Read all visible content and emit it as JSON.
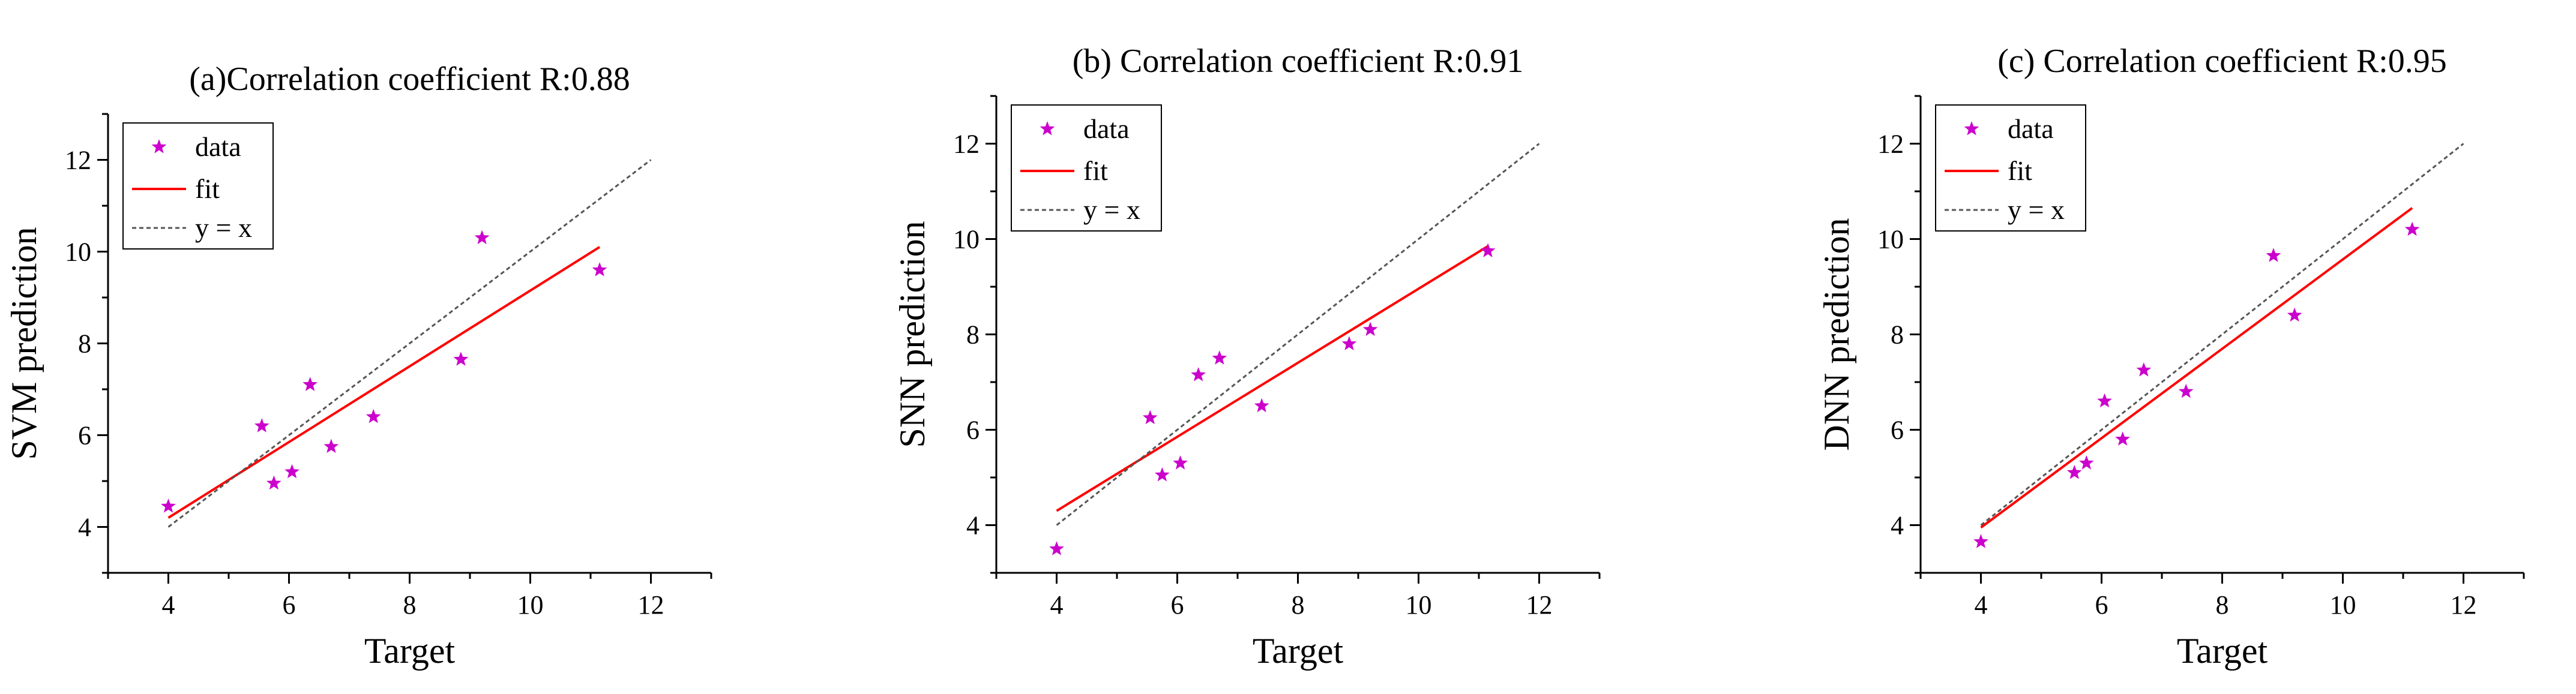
{
  "colors": {
    "data_marker": "#cc00cc",
    "fit_line": "#ff0000",
    "identity_line": "#555555",
    "axis": "#000000"
  },
  "legend_labels": {
    "data": "data",
    "fit": "fit",
    "identity": "y = x"
  },
  "chart_data": [
    {
      "type": "scatter",
      "title": "(a)Correlation coefficient R:0.88",
      "xlabel": "Target",
      "ylabel": "SVM prediction",
      "xlim": [
        3,
        13
      ],
      "ylim": [
        3,
        13
      ],
      "xticks": [
        4,
        6,
        8,
        10,
        12
      ],
      "yticks": [
        4,
        6,
        8,
        10,
        12
      ],
      "legend_position": "top-left",
      "series": [
        {
          "name": "data",
          "kind": "points",
          "x": [
            4.0,
            5.55,
            5.75,
            6.05,
            6.35,
            6.7,
            7.4,
            8.85,
            9.2,
            11.15
          ],
          "y": [
            4.45,
            6.2,
            4.95,
            5.2,
            7.1,
            5.75,
            6.4,
            7.65,
            10.3,
            9.6
          ]
        },
        {
          "name": "fit",
          "kind": "line",
          "x": [
            4.0,
            11.15
          ],
          "y": [
            4.2,
            10.1
          ]
        },
        {
          "name": "y = x",
          "kind": "dashed-line",
          "x": [
            4.0,
            12.0
          ],
          "y": [
            4.0,
            12.0
          ]
        }
      ]
    },
    {
      "type": "scatter",
      "title": "(b) Correlation coefficient R:0.91",
      "xlabel": "Target",
      "ylabel": "SNN prediction",
      "xlim": [
        3,
        13
      ],
      "ylim": [
        3,
        13
      ],
      "xticks": [
        4,
        6,
        8,
        10,
        12
      ],
      "yticks": [
        4,
        6,
        8,
        10,
        12
      ],
      "legend_position": "top-left",
      "series": [
        {
          "name": "data",
          "kind": "points",
          "x": [
            4.0,
            5.55,
            5.75,
            6.05,
            6.35,
            6.7,
            7.4,
            8.85,
            9.2,
            11.15
          ],
          "y": [
            3.5,
            6.25,
            5.05,
            5.3,
            7.15,
            7.5,
            6.5,
            7.8,
            8.1,
            9.75
          ]
        },
        {
          "name": "fit",
          "kind": "line",
          "x": [
            4.0,
            11.15
          ],
          "y": [
            4.3,
            9.85
          ]
        },
        {
          "name": "y = x",
          "kind": "dashed-line",
          "x": [
            4.0,
            12.0
          ],
          "y": [
            4.0,
            12.0
          ]
        }
      ]
    },
    {
      "type": "scatter",
      "title": "(c) Correlation coefficient R:0.95",
      "xlabel": "Target",
      "ylabel": "DNN prediction",
      "xlim": [
        3,
        13
      ],
      "ylim": [
        3,
        13
      ],
      "xticks": [
        4,
        6,
        8,
        10,
        12
      ],
      "yticks": [
        4,
        6,
        8,
        10,
        12
      ],
      "legend_position": "top-left",
      "series": [
        {
          "name": "data",
          "kind": "points",
          "x": [
            4.0,
            5.55,
            5.75,
            6.05,
            6.35,
            6.7,
            7.4,
            8.85,
            9.2,
            11.15
          ],
          "y": [
            3.65,
            5.1,
            5.3,
            6.6,
            5.8,
            7.25,
            6.8,
            9.65,
            8.4,
            10.2
          ]
        },
        {
          "name": "fit",
          "kind": "line",
          "x": [
            4.0,
            11.15
          ],
          "y": [
            3.95,
            10.65
          ]
        },
        {
          "name": "y = x",
          "kind": "dashed-line",
          "x": [
            4.0,
            12.0
          ],
          "y": [
            4.0,
            12.0
          ]
        }
      ]
    }
  ]
}
